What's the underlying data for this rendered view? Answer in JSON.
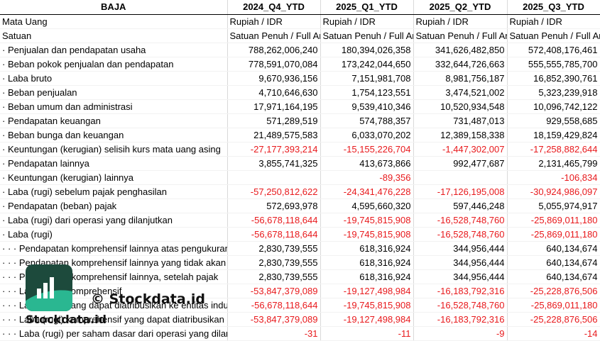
{
  "header": {
    "company": "BAJA",
    "periods": [
      "2024_Q4_YTD",
      "2025_Q1_YTD",
      "2025_Q2_YTD",
      "2025_Q3_YTD"
    ]
  },
  "meta_rows": [
    {
      "label": "Mata Uang",
      "values": [
        "Rupiah / IDR",
        "Rupiah / IDR",
        "Rupiah / IDR",
        "Rupiah / IDR"
      ]
    },
    {
      "label": "Satuan",
      "values": [
        "Satuan Penuh / Full Amount",
        "Satuan Penuh / Full Amount",
        "Satuan Penuh / Full Amount",
        "Satuan Penuh / Full Amount"
      ]
    }
  ],
  "rows": [
    {
      "prefix": "· ",
      "label": "Penjualan dan pendapatan usaha",
      "values": [
        "788,262,006,240",
        "180,394,026,358",
        "341,626,482,850",
        "572,408,176,461"
      ],
      "neg": [
        false,
        false,
        false,
        false
      ]
    },
    {
      "prefix": "· ",
      "label": "Beban pokok penjualan dan pendapatan",
      "values": [
        "778,591,070,084",
        "173,242,044,650",
        "332,644,726,663",
        "555,555,785,700"
      ],
      "neg": [
        false,
        false,
        false,
        false
      ]
    },
    {
      "prefix": "· ",
      "label": "Laba bruto",
      "values": [
        "9,670,936,156",
        "7,151,981,708",
        "8,981,756,187",
        "16,852,390,761"
      ],
      "neg": [
        false,
        false,
        false,
        false
      ]
    },
    {
      "prefix": "· ",
      "label": "Beban penjualan",
      "values": [
        "4,710,646,630",
        "1,754,123,551",
        "3,474,521,002",
        "5,323,239,918"
      ],
      "neg": [
        false,
        false,
        false,
        false
      ]
    },
    {
      "prefix": "· ",
      "label": "Beban umum dan administrasi",
      "values": [
        "17,971,164,195",
        "9,539,410,346",
        "10,520,934,548",
        "10,096,742,122"
      ],
      "neg": [
        false,
        false,
        false,
        false
      ]
    },
    {
      "prefix": "· ",
      "label": "Pendapatan keuangan",
      "values": [
        "571,289,519",
        "574,788,357",
        "731,487,013",
        "929,558,685"
      ],
      "neg": [
        false,
        false,
        false,
        false
      ]
    },
    {
      "prefix": "· ",
      "label": "Beban bunga dan keuangan",
      "values": [
        "21,489,575,583",
        "6,033,070,202",
        "12,389,158,338",
        "18,159,429,824"
      ],
      "neg": [
        false,
        false,
        false,
        false
      ]
    },
    {
      "prefix": "· ",
      "label": "Keuntungan (kerugian) selisih kurs mata uang asing",
      "values": [
        "-27,177,393,214",
        "-15,155,226,704",
        "-1,447,302,007",
        "-17,258,882,644"
      ],
      "neg": [
        true,
        true,
        true,
        true
      ]
    },
    {
      "prefix": "· ",
      "label": "Pendapatan lainnya",
      "values": [
        "3,855,741,325",
        "413,673,866",
        "992,477,687",
        "2,131,465,799"
      ],
      "neg": [
        false,
        false,
        false,
        false
      ]
    },
    {
      "prefix": "· ",
      "label": "Keuntungan (kerugian) lainnya",
      "values": [
        "",
        "-89,356",
        "",
        "-106,834"
      ],
      "neg": [
        false,
        true,
        false,
        true
      ]
    },
    {
      "prefix": "· ",
      "label": "Laba (rugi) sebelum pajak penghasilan",
      "values": [
        "-57,250,812,622",
        "-24,341,476,228",
        "-17,126,195,008",
        "-30,924,986,097"
      ],
      "neg": [
        true,
        true,
        true,
        true
      ]
    },
    {
      "prefix": "· ",
      "label": "Pendapatan (beban) pajak",
      "values": [
        "572,693,978",
        "4,595,660,320",
        "597,446,248",
        "5,055,974,917"
      ],
      "neg": [
        false,
        false,
        false,
        false
      ]
    },
    {
      "prefix": "· ",
      "label": "Laba (rugi) dari operasi yang dilanjutkan",
      "values": [
        "-56,678,118,644",
        "-19,745,815,908",
        "-16,528,748,760",
        "-25,869,011,180"
      ],
      "neg": [
        true,
        true,
        true,
        true
      ]
    },
    {
      "prefix": "· ",
      "label": "Laba (rugi)",
      "values": [
        "-56,678,118,644",
        "-19,745,815,908",
        "-16,528,748,760",
        "-25,869,011,180"
      ],
      "neg": [
        true,
        true,
        true,
        true
      ]
    },
    {
      "prefix": "· · · ",
      "label": "Pendapatan komprehensif lainnya atas pengukuran",
      "values": [
        "2,830,739,555",
        "618,316,924",
        "344,956,444",
        "640,134,674"
      ],
      "neg": [
        false,
        false,
        false,
        false
      ]
    },
    {
      "prefix": "· · · ",
      "label": "Pendapatan komprehensif lainnya yang tidak akan",
      "values": [
        "2,830,739,555",
        "618,316,924",
        "344,956,444",
        "640,134,674"
      ],
      "neg": [
        false,
        false,
        false,
        false
      ]
    },
    {
      "prefix": "· · · ",
      "label": "Pendapatan komprehensif lainnya, setelah pajak",
      "values": [
        "2,830,739,555",
        "618,316,924",
        "344,956,444",
        "640,134,674"
      ],
      "neg": [
        false,
        false,
        false,
        false
      ]
    },
    {
      "prefix": "· · · ",
      "label": "Laba (rugi) komprehensif",
      "values": [
        "-53,847,379,089",
        "-19,127,498,984",
        "-16,183,792,316",
        "-25,228,876,506"
      ],
      "neg": [
        true,
        true,
        true,
        true
      ]
    },
    {
      "prefix": "· · · ",
      "label": "Laba (rugi) yang dapat diatribusikan ke entitas induk",
      "values": [
        "-56,678,118,644",
        "-19,745,815,908",
        "-16,528,748,760",
        "-25,869,011,180"
      ],
      "neg": [
        true,
        true,
        true,
        true
      ]
    },
    {
      "prefix": "· · · ",
      "label": "Laba (rugi) komprehensif yang dapat diatribusikan",
      "values": [
        "-53,847,379,089",
        "-19,127,498,984",
        "-16,183,792,316",
        "-25,228,876,506"
      ],
      "neg": [
        true,
        true,
        true,
        true
      ]
    },
    {
      "prefix": "· · · ",
      "label": "Laba (rugi) per saham dasar dari operasi yang dilanjutkan",
      "values": [
        "-31",
        "-11",
        "-9",
        "-14"
      ],
      "neg": [
        true,
        true,
        true,
        true
      ]
    }
  ],
  "watermark": {
    "copyright_text": "© Stockdata.id",
    "logo_text": "Stockdata.id"
  },
  "colors": {
    "negative": "#e8191c",
    "logo_dark": "#1d4a3c",
    "logo_accent": "#2cc39a"
  }
}
